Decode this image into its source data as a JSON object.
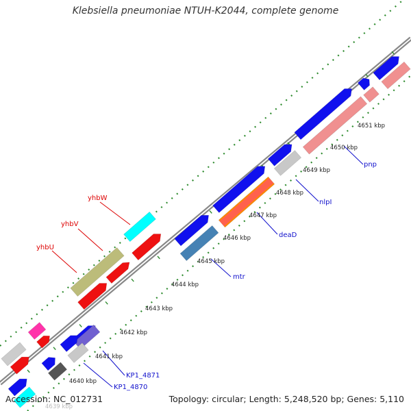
{
  "title": "Klebsiella pneumoniae NTUH-K2044, complete genome",
  "footer": {
    "accession": "Accession: NC_012731",
    "summary": "Topology: circular; Length: 5,248,520 bp; Genes: 5,110"
  },
  "ticks": [
    "4639 kbp",
    "4640 kbp",
    "4641 kbp",
    "4642 kbp",
    "4643 kbp",
    "4644 kbp",
    "4645 kbp",
    "4646 kbp",
    "4647 kbp",
    "4648 kbp",
    "4649 kbp",
    "4650 kbp",
    "4651 kbp"
  ],
  "gene_labels": {
    "yhbW": "yhbW",
    "yhbV": "yhbV",
    "yhbU": "yhbU",
    "pnp": "pnp",
    "nlpI": "nlpI",
    "deaD": "deaD",
    "mtr": "mtr",
    "kp4871": "KP1_4871",
    "kp4870": "KP1_4870"
  },
  "colors": {
    "backbone": "#888888",
    "dots": "#2e8b2e",
    "forward_cds": "#1010ee",
    "reverse_cds": "#ee1111",
    "rna": "#f09090",
    "red_label": "#dd0000",
    "blue_label": "#1010cc"
  }
}
